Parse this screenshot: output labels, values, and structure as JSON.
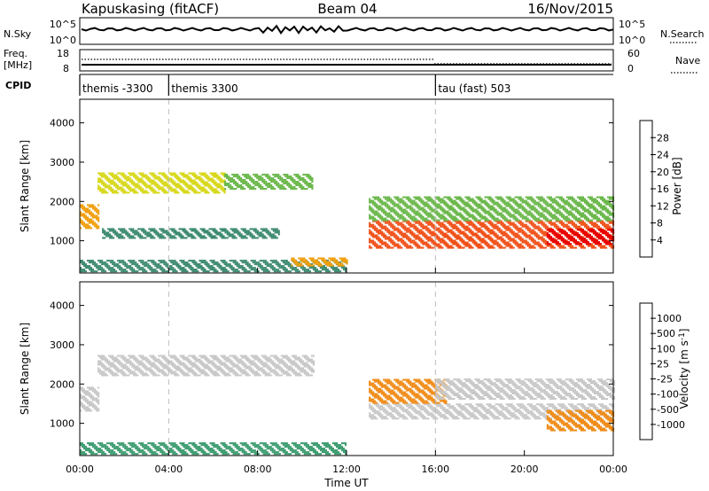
{
  "header": {
    "station": "Kapuskasing (fitACF)",
    "beam": "Beam 04",
    "date": "16/Nov/2015"
  },
  "top_panels": {
    "nsky_label": "N.Sky",
    "nsky_ticks": [
      "10^5",
      "10^0"
    ],
    "nsearch_label": "N.Search",
    "nsearch_ticks": [
      "10^5",
      "10^0"
    ],
    "freq_label": "Freq.",
    "freq_unit": "[MHz]",
    "freq_ticks": [
      "18",
      "8"
    ],
    "nave_label": "Nave",
    "nave_ticks": [
      "60",
      "0"
    ],
    "cpid_label": "CPID",
    "cpid_segments": [
      {
        "label": "themis -3300",
        "start_h": 0,
        "end_h": 4
      },
      {
        "label": "themis 3300",
        "start_h": 4,
        "end_h": 16
      },
      {
        "label": "tau (fast) 503",
        "start_h": 16,
        "end_h": 24
      }
    ]
  },
  "chart_data": [
    {
      "type": "heatmap",
      "title": "",
      "xlabel": "Time UT",
      "ylabel": "Slant Range [km]",
      "x_ticks": [
        "00:00",
        "04:00",
        "08:00",
        "12:00",
        "16:00",
        "20:00",
        "00:00"
      ],
      "x_range_hours": [
        0,
        24
      ],
      "y_ticks": [
        1000,
        2000,
        3000,
        4000
      ],
      "ylim": [
        180,
        4600
      ],
      "colorbar": {
        "label": "Power [dB]",
        "ticks": [
          "28",
          "24",
          "20",
          "16",
          "12",
          "8",
          "4"
        ],
        "range": [
          0,
          32
        ],
        "colors": [
          "#1428ff",
          "#2c5fb0",
          "#3c8a70",
          "#6cb84c",
          "#d8d81c",
          "#f0a010",
          "#f05018",
          "#e80000"
        ]
      },
      "regions": [
        {
          "t0": 0.0,
          "t1": 0.8,
          "r0": 1300,
          "r1": 1900,
          "power_db": 20
        },
        {
          "t0": 0.8,
          "t1": 6.5,
          "r0": 2200,
          "r1": 2700,
          "power_db": 18
        },
        {
          "t0": 6.5,
          "t1": 10.5,
          "r0": 2300,
          "r1": 2700,
          "power_db": 14
        },
        {
          "t0": 1.0,
          "t1": 9.0,
          "r0": 1050,
          "r1": 1300,
          "power_db": 8
        },
        {
          "t0": 0.0,
          "t1": 12.0,
          "r0": 200,
          "r1": 500,
          "power_db": 10
        },
        {
          "t0": 9.5,
          "t1": 12.0,
          "r0": 350,
          "r1": 550,
          "power_db": 22
        },
        {
          "t0": 13.0,
          "t1": 24.0,
          "r0": 800,
          "r1": 1500,
          "power_db": 24
        },
        {
          "t0": 13.0,
          "t1": 24.0,
          "r0": 1500,
          "r1": 2100,
          "power_db": 12
        },
        {
          "t0": 21.0,
          "t1": 24.0,
          "r0": 900,
          "r1": 1300,
          "power_db": 28
        }
      ]
    },
    {
      "type": "heatmap",
      "title": "",
      "xlabel": "Time UT",
      "ylabel": "Slant Range [km]",
      "x_ticks": [
        "00:00",
        "04:00",
        "08:00",
        "12:00",
        "16:00",
        "20:00",
        "00:00"
      ],
      "x_range_hours": [
        0,
        24
      ],
      "y_ticks": [
        1000,
        2000,
        3000,
        4000
      ],
      "ylim": [
        180,
        4600
      ],
      "colorbar": {
        "label": "Velocity [m s^-1]",
        "ticks": [
          "1000",
          "500",
          "100",
          "25",
          "-25",
          "-100",
          "-500",
          "-1000"
        ],
        "range": [
          -1000,
          1000
        ],
        "colors": [
          "#1428c8",
          "#2c7cb0",
          "#3c9c70",
          "#60c838",
          "#c8c8c8",
          "#f0b428",
          "#f08c18",
          "#e83c10",
          "#e80000"
        ]
      },
      "regions": [
        {
          "t0": 0.0,
          "t1": 0.8,
          "r0": 1300,
          "r1": 1900,
          "velocity": 0
        },
        {
          "t0": 0.8,
          "t1": 10.5,
          "r0": 2200,
          "r1": 2700,
          "velocity": 0
        },
        {
          "t0": 0.0,
          "t1": 12.0,
          "r0": 200,
          "r1": 500,
          "velocity": 150
        },
        {
          "t0": 13.0,
          "t1": 24.0,
          "r0": 1100,
          "r1": 1500,
          "velocity": 0
        },
        {
          "t0": 13.0,
          "t1": 16.5,
          "r0": 1500,
          "r1": 2100,
          "velocity": -300
        },
        {
          "t0": 16.0,
          "t1": 24.0,
          "r0": 1600,
          "r1": 2100,
          "velocity": 0
        },
        {
          "t0": 21.0,
          "t1": 24.0,
          "r0": 800,
          "r1": 1300,
          "velocity": -400
        }
      ]
    }
  ]
}
